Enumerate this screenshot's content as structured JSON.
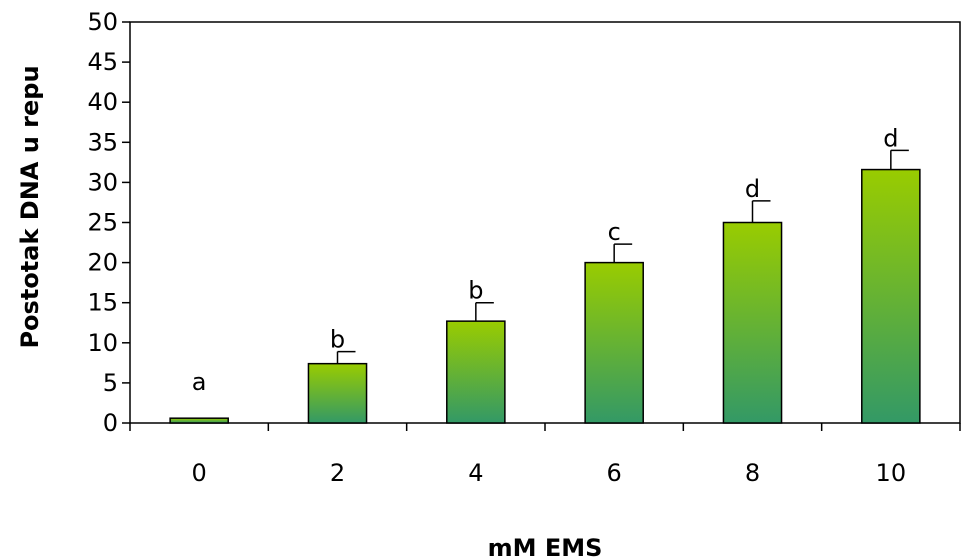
{
  "chart_data": {
    "type": "bar",
    "title": "",
    "xlabel": "mM EMS",
    "ylabel": "Postotak DNA u repu",
    "categories": [
      "0",
      "2",
      "4",
      "6",
      "8",
      "10"
    ],
    "values": [
      0.6,
      7.4,
      12.7,
      20.0,
      25.0,
      31.6
    ],
    "error_plus": [
      0.0,
      1.5,
      2.3,
      2.3,
      2.7,
      2.4
    ],
    "significance_letters": [
      "a",
      "b",
      "b",
      "c",
      "d",
      "d"
    ],
    "ylim": [
      0,
      50
    ],
    "yticks": [
      "0",
      "5",
      "10",
      "15",
      "20",
      "25",
      "30",
      "35",
      "40",
      "45",
      "50"
    ],
    "grid": false,
    "legend": "none",
    "colors": {
      "bar_top": "#99cc00",
      "bar_bottom": "#339966",
      "bar_edge": "#000000"
    }
  }
}
